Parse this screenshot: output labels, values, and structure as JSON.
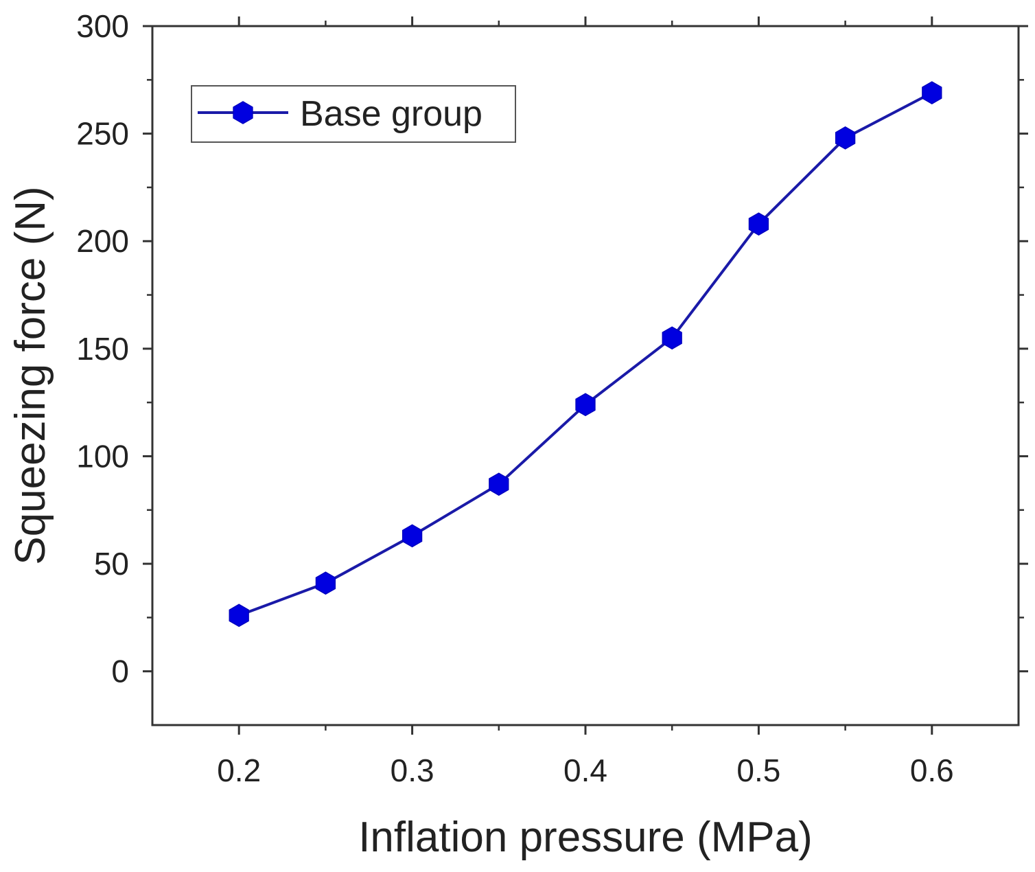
{
  "chart_data": {
    "type": "line",
    "title": "",
    "xlabel": "Inflation pressure (MPa)",
    "ylabel": "Squeezing force (N)",
    "xlim": [
      0.15,
      0.65
    ],
    "ylim": [
      -25,
      300
    ],
    "xticks": [
      0.2,
      0.3,
      0.4,
      0.5,
      0.6
    ],
    "xtick_labels": [
      "0.2",
      "0.3",
      "0.4",
      "0.5",
      "0.6"
    ],
    "xminor_ticks": [
      0.25,
      0.35,
      0.45,
      0.55
    ],
    "yticks": [
      0,
      50,
      100,
      150,
      200,
      250,
      300
    ],
    "ytick_labels": [
      "0",
      "50",
      "100",
      "150",
      "200",
      "250",
      "300"
    ],
    "yminor_ticks": [
      25,
      75,
      125,
      175,
      225,
      275
    ],
    "grid": false,
    "legend_position": "top-left",
    "series": [
      {
        "name": "Base group",
        "color": "#0000e0",
        "line_color": "#1a1aa8",
        "marker": "hexagon",
        "x": [
          0.2,
          0.25,
          0.3,
          0.35,
          0.4,
          0.45,
          0.5,
          0.55,
          0.6
        ],
        "y": [
          26,
          41,
          63,
          87,
          124,
          155,
          208,
          248,
          269
        ]
      }
    ]
  }
}
